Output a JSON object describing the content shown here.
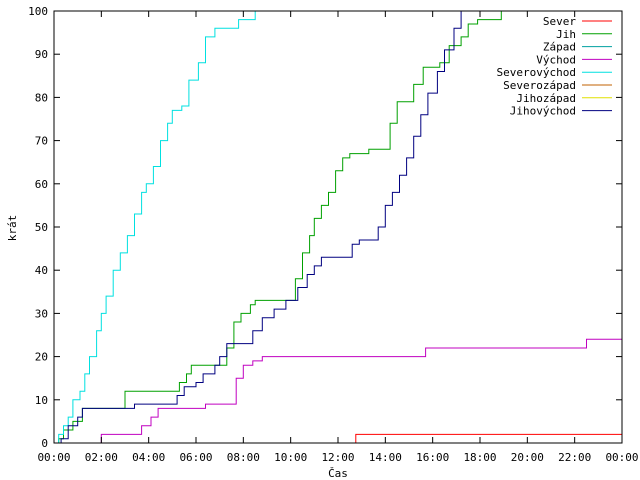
{
  "chart_data": {
    "type": "line",
    "title": "",
    "xlabel": "Čas",
    "ylabel": "krát",
    "xlim": [
      0,
      24
    ],
    "ylim": [
      0,
      100
    ],
    "x_ticks": [
      {
        "value": 0,
        "label": "00:00"
      },
      {
        "value": 2,
        "label": "02:00"
      },
      {
        "value": 4,
        "label": "04:00"
      },
      {
        "value": 6,
        "label": "06:00"
      },
      {
        "value": 8,
        "label": "08:00"
      },
      {
        "value": 10,
        "label": "10:00"
      },
      {
        "value": 12,
        "label": "12:00"
      },
      {
        "value": 14,
        "label": "14:00"
      },
      {
        "value": 16,
        "label": "16:00"
      },
      {
        "value": 18,
        "label": "18:00"
      },
      {
        "value": 20,
        "label": "20:00"
      },
      {
        "value": 22,
        "label": "22:00"
      },
      {
        "value": 24,
        "label": "00:00"
      }
    ],
    "y_ticks": [
      0,
      10,
      20,
      30,
      40,
      50,
      60,
      70,
      80,
      90,
      100
    ],
    "grid": false,
    "legend_position": "top-right",
    "series": [
      {
        "name": "Sever",
        "color": "#ff0000",
        "points": [
          [
            0,
            0
          ],
          [
            12.7,
            0
          ],
          [
            12.75,
            2
          ],
          [
            24,
            2
          ]
        ]
      },
      {
        "name": "Jih",
        "color": "#00a000",
        "points": [
          [
            0,
            0
          ],
          [
            0.2,
            1
          ],
          [
            0.4,
            3
          ],
          [
            0.8,
            5
          ],
          [
            1.2,
            8
          ],
          [
            2.8,
            8
          ],
          [
            3.0,
            12
          ],
          [
            5.0,
            12
          ],
          [
            5.3,
            14
          ],
          [
            5.6,
            16
          ],
          [
            5.8,
            18
          ],
          [
            7.0,
            18
          ],
          [
            7.3,
            22
          ],
          [
            7.6,
            28
          ],
          [
            7.9,
            30
          ],
          [
            8.3,
            32
          ],
          [
            8.5,
            33
          ],
          [
            10.0,
            33
          ],
          [
            10.2,
            38
          ],
          [
            10.5,
            44
          ],
          [
            10.8,
            48
          ],
          [
            11.0,
            52
          ],
          [
            11.3,
            55
          ],
          [
            11.6,
            58
          ],
          [
            11.9,
            63
          ],
          [
            12.2,
            66
          ],
          [
            12.5,
            67
          ],
          [
            13.0,
            67
          ],
          [
            13.3,
            68
          ],
          [
            13.8,
            68
          ],
          [
            14.2,
            74
          ],
          [
            14.5,
            79
          ],
          [
            15.0,
            79
          ],
          [
            15.2,
            83
          ],
          [
            15.6,
            87
          ],
          [
            16.3,
            88
          ],
          [
            16.7,
            92
          ],
          [
            17.2,
            94
          ],
          [
            17.5,
            97
          ],
          [
            17.9,
            98
          ],
          [
            18.5,
            98
          ],
          [
            18.9,
            100
          ]
        ]
      },
      {
        "name": "Západ",
        "color": "#00a0a0",
        "points": []
      },
      {
        "name": "Východ",
        "color": "#c000c0",
        "points": [
          [
            0,
            0
          ],
          [
            1.9,
            0
          ],
          [
            2.0,
            2
          ],
          [
            3.5,
            2
          ],
          [
            3.7,
            4
          ],
          [
            4.1,
            6
          ],
          [
            4.4,
            8
          ],
          [
            6.1,
            8
          ],
          [
            6.4,
            9
          ],
          [
            7.5,
            9
          ],
          [
            7.7,
            15
          ],
          [
            8.0,
            18
          ],
          [
            8.4,
            19
          ],
          [
            8.8,
            20
          ],
          [
            15.5,
            20
          ],
          [
            15.7,
            22
          ],
          [
            22.3,
            22
          ],
          [
            22.5,
            24
          ],
          [
            24,
            24
          ]
        ]
      },
      {
        "name": "Severovýchod",
        "color": "#00e0e0",
        "points": [
          [
            0,
            0
          ],
          [
            0.2,
            2
          ],
          [
            0.4,
            4
          ],
          [
            0.6,
            6
          ],
          [
            0.8,
            10
          ],
          [
            1.1,
            12
          ],
          [
            1.3,
            16
          ],
          [
            1.5,
            20
          ],
          [
            1.8,
            26
          ],
          [
            2.0,
            30
          ],
          [
            2.2,
            34
          ],
          [
            2.5,
            40
          ],
          [
            2.8,
            44
          ],
          [
            3.1,
            48
          ],
          [
            3.4,
            53
          ],
          [
            3.7,
            58
          ],
          [
            3.9,
            60
          ],
          [
            4.2,
            64
          ],
          [
            4.5,
            70
          ],
          [
            4.8,
            74
          ],
          [
            5.0,
            77
          ],
          [
            5.4,
            78
          ],
          [
            5.7,
            84
          ],
          [
            6.1,
            88
          ],
          [
            6.4,
            94
          ],
          [
            6.8,
            96
          ],
          [
            7.5,
            96
          ],
          [
            7.8,
            98
          ],
          [
            8.2,
            98
          ],
          [
            8.5,
            100
          ]
        ]
      },
      {
        "name": "Severozápad",
        "color": "#c06000",
        "points": []
      },
      {
        "name": "Jihozápad",
        "color": "#e0e000",
        "points": []
      },
      {
        "name": "Jihovýchod",
        "color": "#000080",
        "points": [
          [
            0,
            0
          ],
          [
            0.3,
            1
          ],
          [
            0.6,
            4
          ],
          [
            1.0,
            6
          ],
          [
            1.2,
            8
          ],
          [
            3.2,
            8
          ],
          [
            3.4,
            9
          ],
          [
            5.0,
            9
          ],
          [
            5.2,
            11
          ],
          [
            5.5,
            13
          ],
          [
            6.0,
            14
          ],
          [
            6.3,
            16
          ],
          [
            6.8,
            18
          ],
          [
            7.0,
            20
          ],
          [
            7.3,
            23
          ],
          [
            8.1,
            23
          ],
          [
            8.4,
            26
          ],
          [
            8.8,
            29
          ],
          [
            9.3,
            31
          ],
          [
            9.8,
            33
          ],
          [
            10.3,
            36
          ],
          [
            10.7,
            39
          ],
          [
            11.0,
            41
          ],
          [
            11.3,
            43
          ],
          [
            12.3,
            43
          ],
          [
            12.6,
            46
          ],
          [
            12.9,
            47
          ],
          [
            13.4,
            47
          ],
          [
            13.7,
            50
          ],
          [
            14.0,
            55
          ],
          [
            14.3,
            58
          ],
          [
            14.6,
            62
          ],
          [
            14.9,
            66
          ],
          [
            15.2,
            71
          ],
          [
            15.5,
            76
          ],
          [
            15.8,
            81
          ],
          [
            16.2,
            86
          ],
          [
            16.5,
            91
          ],
          [
            16.9,
            96
          ],
          [
            17.2,
            100
          ]
        ]
      }
    ]
  }
}
